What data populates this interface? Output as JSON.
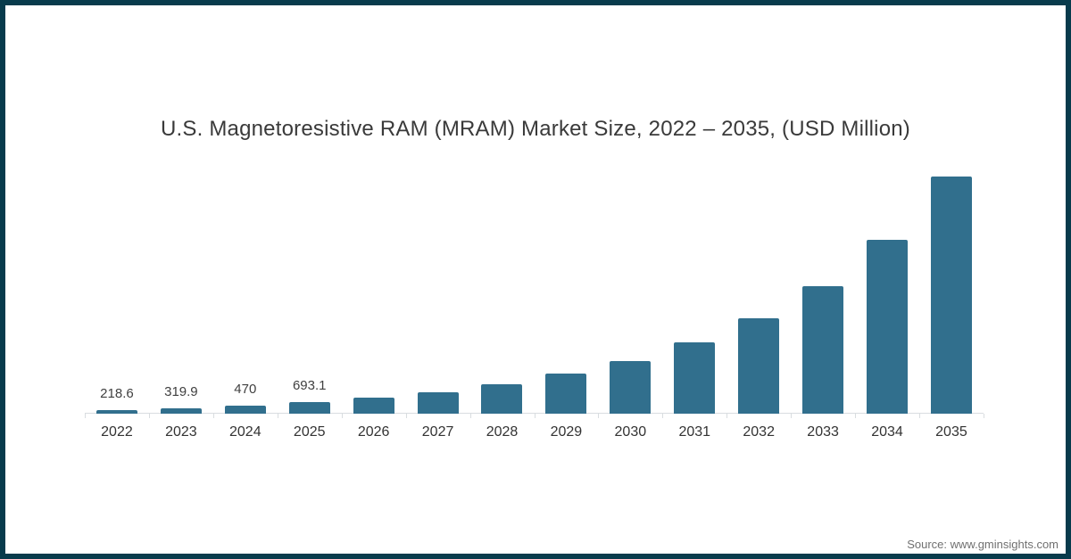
{
  "frame": {
    "border_color": "#083b4c",
    "background": "#ffffff"
  },
  "title": "U.S. Magnetoresistive RAM (MRAM) Market Size, 2022 – 2035, (USD Million)",
  "source_text": "Source: www.gminsights.com",
  "colors": {
    "bar": "#316f8d",
    "axis": "#d9dde0",
    "title_text": "#3a3a3a",
    "data_label_text": "#404040",
    "x_label_text": "#333333",
    "source_text": "#707070"
  },
  "chart_data": {
    "type": "bar",
    "title": "U.S. Magnetoresistive RAM (MRAM) Market Size, 2022 – 2035, (USD Million)",
    "categories": [
      "2022",
      "2023",
      "2024",
      "2025",
      "2026",
      "2027",
      "2028",
      "2029",
      "2030",
      "2031",
      "2032",
      "2033",
      "2034",
      "2035"
    ],
    "values": [
      218.6,
      319.9,
      470,
      693.1,
      950,
      1290,
      1750,
      2360,
      3120,
      4240,
      5650,
      7600,
      10330,
      14100
    ],
    "data_labels": [
      "218.6",
      "319.9",
      "470",
      "693.1",
      "",
      "",
      "",
      "",
      "",
      "",
      "",
      "",
      "",
      ""
    ],
    "xlabel": "",
    "ylabel": "",
    "ylim": [
      0,
      14100
    ],
    "grid": false,
    "legend": false,
    "y_axis_shown": false,
    "bar_color": "#316f8d"
  }
}
